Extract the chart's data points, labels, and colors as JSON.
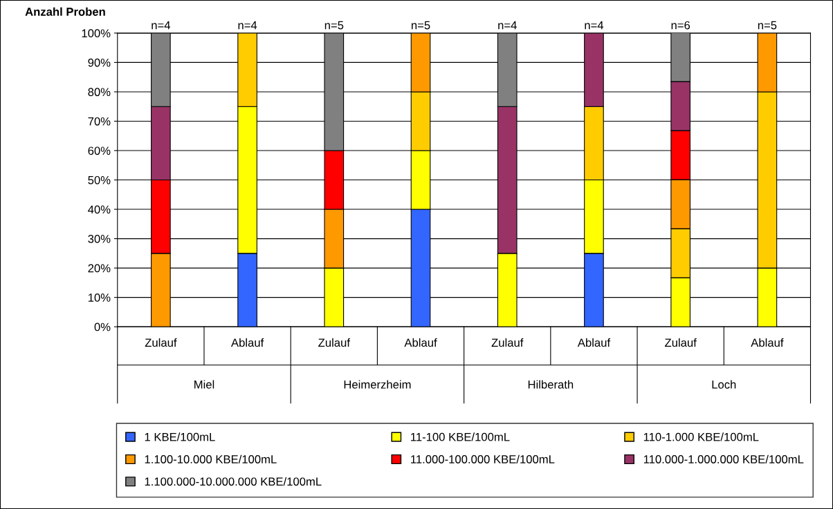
{
  "chart_data": {
    "type": "bar",
    "stacked": true,
    "ylabel": "Anzahl Proben",
    "categories": [
      "Zulauf",
      "Ablauf",
      "Zulauf",
      "Ablauf",
      "Zulauf",
      "Ablauf",
      "Zulauf",
      "Ablauf"
    ],
    "series": [
      {
        "name": "1 KBE/100mL",
        "color": "#3366ff",
        "values": [
          null,
          25,
          null,
          40,
          null,
          25,
          null,
          null
        ]
      },
      {
        "name": "11-100 KBE/100mL",
        "color": "#ffff00",
        "values": [
          null,
          50,
          20,
          20,
          25,
          25,
          16.7,
          20
        ]
      },
      {
        "name": "110-1.000 KBE/100mL",
        "color": "#ffcc00",
        "values": [
          null,
          25,
          null,
          20,
          null,
          25,
          16.7,
          60
        ]
      },
      {
        "name": "1.100-10.000 KBE/100mL",
        "color": "#ff9900",
        "values": [
          25,
          null,
          20,
          20,
          null,
          null,
          16.7,
          20
        ]
      },
      {
        "name": "11.000-100.000 KBE/100mL",
        "color": "#ff0000",
        "values": [
          25,
          null,
          20,
          null,
          null,
          null,
          16.7,
          null
        ]
      },
      {
        "name": "110.000-1.000.000 KBE/100mL",
        "color": "#993366",
        "values": [
          25,
          null,
          null,
          null,
          50,
          25,
          16.7,
          null
        ]
      },
      {
        "name": "1.100.000-10.000.000 KBE/100mL",
        "color": "#808080",
        "values": [
          25,
          null,
          40,
          null,
          25,
          null,
          16.7,
          null
        ]
      }
    ],
    "ylim": [
      0,
      100
    ],
    "yticks": [
      {
        "value": 0,
        "label": "0%"
      },
      {
        "value": 10,
        "label": "10%"
      },
      {
        "value": 20,
        "label": "20%"
      },
      {
        "value": 30,
        "label": "30%"
      },
      {
        "value": 40,
        "label": "40%"
      },
      {
        "value": 50,
        "label": "50%"
      },
      {
        "value": 60,
        "label": "60%"
      },
      {
        "value": 70,
        "label": "70%"
      },
      {
        "value": 80,
        "label": "80%"
      },
      {
        "value": 90,
        "label": "90%"
      },
      {
        "value": 100,
        "label": "100%"
      }
    ],
    "grid": "y",
    "legend": "bottom",
    "annotations": [
      "n=4",
      "n=4",
      "n=5",
      "n=5",
      "n=4",
      "n=4",
      "n=6",
      "n=5",
      "Miel",
      "Heimerzheim",
      "Hilberath",
      "Loch"
    ]
  }
}
